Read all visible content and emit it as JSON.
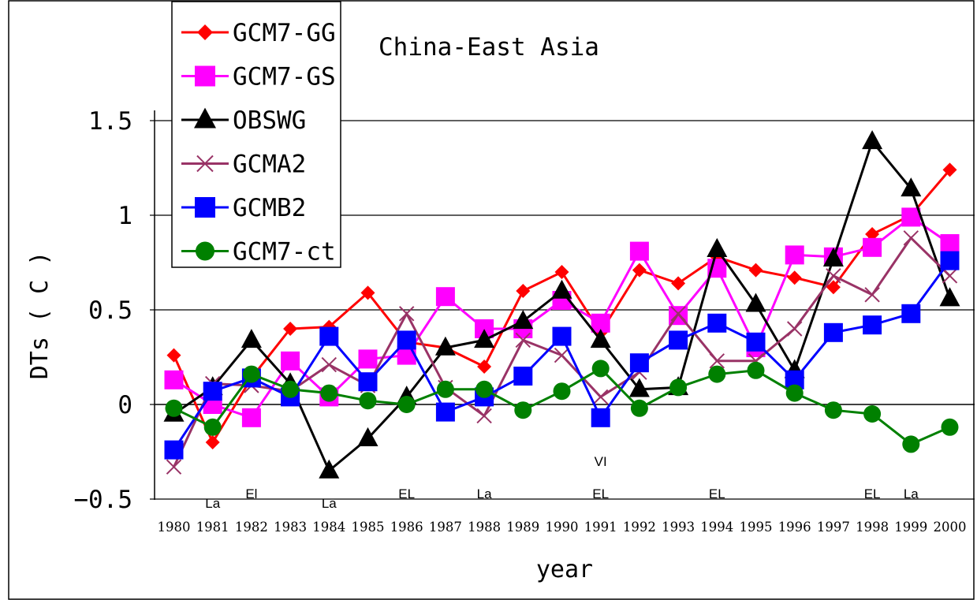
{
  "chart_data": {
    "type": "line",
    "title": "China-East Asia",
    "xlabel": "year",
    "ylabel": "DTs ( C )",
    "ylim": [
      -0.5,
      2.0
    ],
    "y_ticks": [
      -0.5,
      0,
      0.5,
      1,
      1.5
    ],
    "y_tick_labels": [
      "−0.5",
      "0",
      "0.5",
      "1",
      "1.5"
    ],
    "grid": true,
    "legend_position": "top-left",
    "categories": [
      "1980",
      "1981",
      "1982",
      "1983",
      "1984",
      "1985",
      "1986",
      "1987",
      "1988",
      "1989",
      "1990",
      "1991",
      "1992",
      "1993",
      "1994",
      "1995",
      "1996",
      "1997",
      "1998",
      "1999",
      "2000"
    ],
    "series": [
      {
        "name": "GCM7-GG",
        "color": "#ff0000",
        "marker": "diamond",
        "values": [
          0.26,
          -0.2,
          0.14,
          0.4,
          0.41,
          0.59,
          0.33,
          0.3,
          0.2,
          0.6,
          0.7,
          0.38,
          0.71,
          0.64,
          0.78,
          0.71,
          0.67,
          0.62,
          0.9,
          1.0,
          1.24
        ]
      },
      {
        "name": "GCM7-GS",
        "color": "#ff00ff",
        "marker": "square",
        "values": [
          0.13,
          0.0,
          -0.07,
          0.23,
          0.04,
          0.24,
          0.26,
          0.57,
          0.4,
          0.4,
          0.55,
          0.43,
          0.81,
          0.47,
          0.72,
          0.3,
          0.79,
          0.78,
          0.83,
          0.99,
          0.85
        ]
      },
      {
        "name": "OBSWG",
        "color": "#000000",
        "marker": "triangle",
        "values": [
          -0.05,
          0.09,
          0.34,
          0.11,
          -0.35,
          -0.18,
          0.04,
          0.3,
          0.34,
          0.44,
          0.6,
          0.34,
          0.08,
          0.09,
          0.82,
          0.53,
          0.18,
          0.77,
          1.39,
          1.14,
          0.56
        ]
      },
      {
        "name": "GCMA2",
        "color": "#993366",
        "marker": "x",
        "values": [
          -0.33,
          0.11,
          0.1,
          0.07,
          0.21,
          0.1,
          0.48,
          0.09,
          -0.06,
          0.34,
          0.26,
          0.04,
          0.17,
          0.48,
          0.23,
          0.23,
          0.4,
          0.68,
          0.58,
          0.88,
          0.68
        ]
      },
      {
        "name": "GCMB2",
        "color": "#0000ff",
        "marker": "square",
        "values": [
          -0.24,
          0.07,
          0.14,
          0.04,
          0.36,
          0.12,
          0.34,
          -0.04,
          0.04,
          0.15,
          0.36,
          -0.07,
          0.22,
          0.34,
          0.43,
          0.33,
          0.13,
          0.38,
          0.42,
          0.48,
          0.76
        ]
      },
      {
        "name": "GCM7-ct",
        "color": "#008000",
        "marker": "circle",
        "values": [
          -0.02,
          -0.12,
          0.16,
          0.08,
          0.06,
          0.02,
          0.0,
          0.08,
          0.08,
          -0.03,
          0.07,
          0.19,
          -0.02,
          0.09,
          0.16,
          0.18,
          0.06,
          -0.03,
          -0.05,
          -0.21,
          -0.12
        ]
      }
    ],
    "annotations": [
      {
        "text": "La",
        "x": "1981",
        "y": -0.52
      },
      {
        "text": "El",
        "x": "1982",
        "y": -0.47
      },
      {
        "text": "La",
        "x": "1984",
        "y": -0.52
      },
      {
        "text": "EL",
        "x": "1986",
        "y": -0.47
      },
      {
        "text": "La",
        "x": "1988",
        "y": -0.47
      },
      {
        "text": "VI",
        "x": "1991",
        "y": -0.3
      },
      {
        "text": "EL",
        "x": "1991",
        "y": -0.47
      },
      {
        "text": "EL",
        "x": "1994",
        "y": -0.47
      },
      {
        "text": "EL",
        "x": "1998",
        "y": -0.47
      },
      {
        "text": "La",
        "x": "1999",
        "y": -0.47
      }
    ]
  }
}
